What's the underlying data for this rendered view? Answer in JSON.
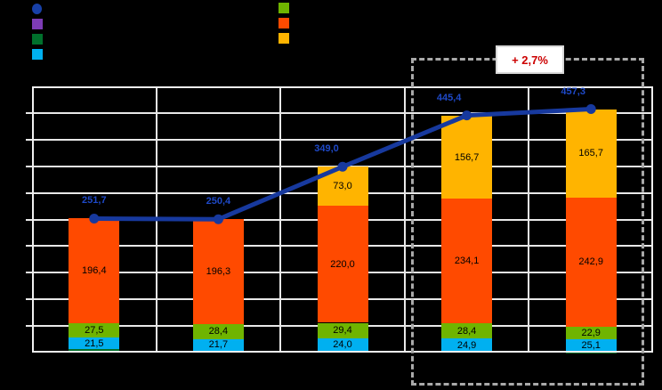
{
  "page": {
    "background": "#000000"
  },
  "legend": {
    "left_items": [
      {
        "name": "total-line-series",
        "marker": "circle",
        "color": "#1840A8"
      },
      {
        "name": "purple-series",
        "marker": "square",
        "color": "#7D3CB5"
      },
      {
        "name": "dark-green-series",
        "marker": "square",
        "color": "#00702C"
      },
      {
        "name": "cyan-series",
        "marker": "square",
        "color": "#00B0F0"
      }
    ],
    "right_items": [
      {
        "name": "light-green-series",
        "marker": "square",
        "color": "#6FB400"
      },
      {
        "name": "orange-red-series",
        "marker": "square",
        "color": "#FF4A00"
      },
      {
        "name": "yellow-orange-series",
        "marker": "square",
        "color": "#FFB400"
      }
    ]
  },
  "annotation": {
    "text": "+ 2,7%",
    "text_color": "#CC0000",
    "background": "#FFFFFF",
    "border_color": "#D8D8D8"
  },
  "chart_data": {
    "type": "bar",
    "subtype": "stacked-bars-with-total-line",
    "title": "",
    "xlabel": "",
    "ylabel": "",
    "ylim": [
      0,
      500
    ],
    "gridline_step": 50,
    "grid": true,
    "categories": [
      "",
      "",
      "",
      "",
      ""
    ],
    "series": [
      {
        "name": "dark-green-base",
        "color": "#00702C",
        "values": [
          6.3,
          4.0,
          2.6,
          1.3,
          0.7
        ],
        "labels": [
          null,
          null,
          null,
          null,
          null
        ]
      },
      {
        "name": "cyan",
        "color": "#00B0F0",
        "values": [
          21.5,
          21.7,
          24.0,
          24.9,
          25.1
        ],
        "labels": [
          "21,5",
          "21,7",
          "24,0",
          "24,9",
          "25,1"
        ]
      },
      {
        "name": "light-green",
        "color": "#6FB400",
        "values": [
          27.5,
          28.4,
          29.4,
          28.4,
          22.9
        ],
        "labels": [
          "27,5",
          "28,4",
          "29,4",
          "28,4",
          "22,9"
        ]
      },
      {
        "name": "orange-red",
        "color": "#FF4A00",
        "values": [
          196.4,
          196.3,
          220.0,
          234.1,
          242.9
        ],
        "labels": [
          "196,4",
          "196,3",
          "220,0",
          "234,1",
          "242,9"
        ]
      },
      {
        "name": "yellow-orange",
        "color": "#FFB400",
        "values": [
          0,
          0,
          73.0,
          156.7,
          165.7
        ],
        "labels": [
          null,
          null,
          "73,0",
          "156,7",
          "165,7"
        ]
      }
    ],
    "line_series": {
      "name": "total",
      "color": "#17399E",
      "label_color": "#1E49C8",
      "values": [
        251.7,
        250.4,
        349.0,
        445.4,
        457.3
      ],
      "labels": [
        "251,7",
        "250,4",
        "349,0",
        "445,4",
        "457,3"
      ]
    },
    "highlight_box": {
      "category_indexes": [
        3,
        4
      ],
      "annotation": "+ 2,7%"
    }
  }
}
